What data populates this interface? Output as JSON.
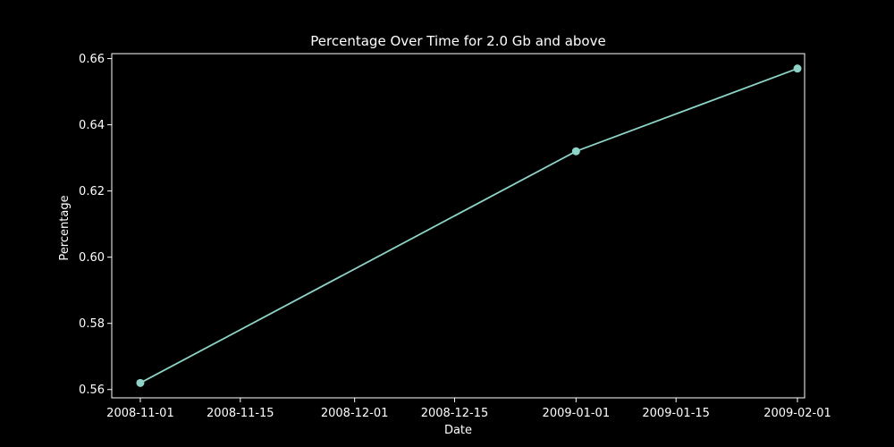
{
  "chart_data": {
    "type": "line",
    "title": "Percentage Over Time for 2.0 Gb and above",
    "xlabel": "Date",
    "ylabel": "Percentage",
    "x_is_date": true,
    "xlim": [
      "2008-10-28",
      "2009-02-02"
    ],
    "ylim": [
      0.5575,
      0.6615
    ],
    "x_ticks": [
      "2008-11-01",
      "2008-11-15",
      "2008-12-01",
      "2008-12-15",
      "2009-01-01",
      "2009-01-15",
      "2009-02-01"
    ],
    "y_ticks": [
      0.56,
      0.58,
      0.6,
      0.62,
      0.64,
      0.66
    ],
    "y_tick_labels": [
      "0.56",
      "0.58",
      "0.60",
      "0.62",
      "0.64",
      "0.66"
    ],
    "grid": false,
    "legend": false,
    "series": [
      {
        "color": "#8dd3c7",
        "marker": "circle",
        "points": [
          {
            "x": "2008-11-01",
            "y": 0.562
          },
          {
            "x": "2009-01-01",
            "y": 0.632
          },
          {
            "x": "2009-02-01",
            "y": 0.657
          }
        ]
      }
    ],
    "colors": {
      "background": "#000000",
      "foreground": "#ffffff",
      "line": "#8dd3c7"
    }
  }
}
